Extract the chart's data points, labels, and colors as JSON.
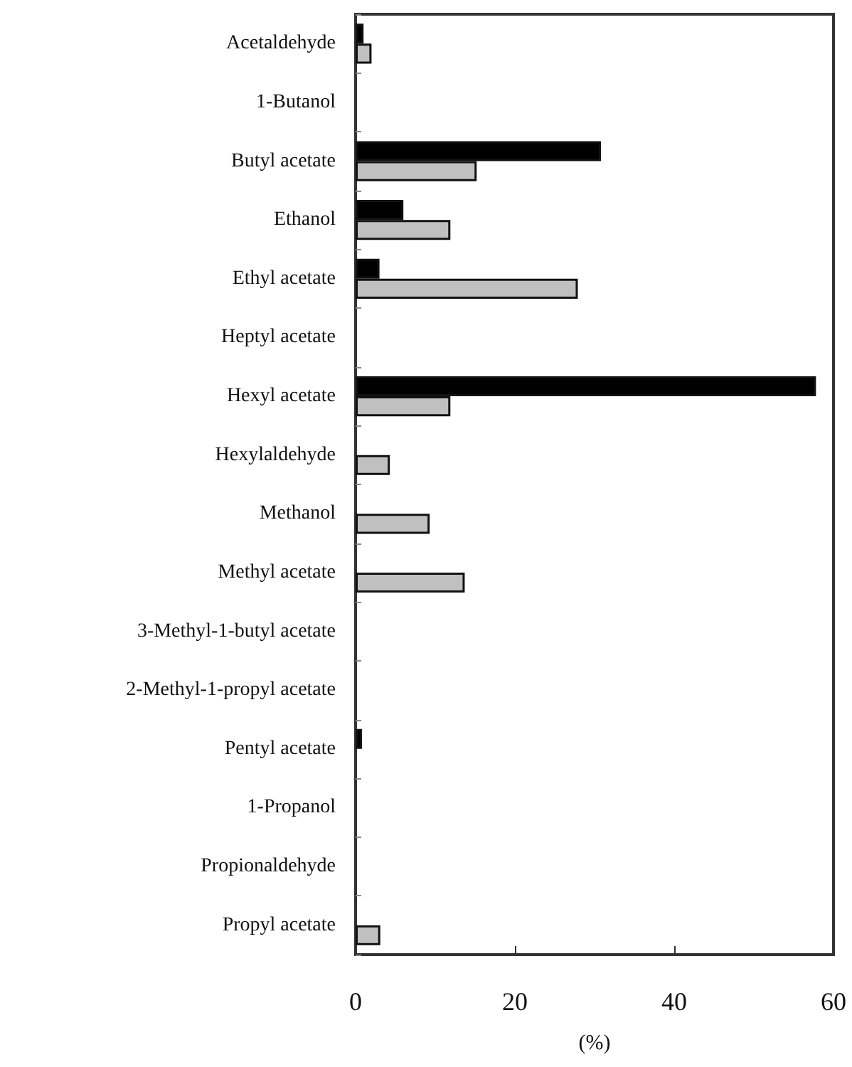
{
  "chart_data": {
    "type": "bar",
    "orientation": "horizontal",
    "xlabel": "(%)",
    "categories": [
      "Acetaldehyde",
      "1-Butanol",
      "Butyl acetate",
      "Ethanol",
      "Ethyl acetate",
      "Heptyl acetate",
      "Hexyl acetate",
      "Hexylaldehyde",
      "Methanol",
      "Methyl acetate",
      "3-Methyl-1-butyl acetate",
      "2-Methyl-1-propyl acetate",
      "Pentyl acetate",
      "1-Propanol",
      "Propionaldehyde",
      "Propyl acetate"
    ],
    "series": [
      {
        "color": "#000000",
        "values": [
          1.0,
          0,
          30.8,
          6.0,
          3.0,
          0,
          57.8,
          0,
          0,
          0,
          0,
          0,
          0.8,
          0,
          0,
          0
        ]
      },
      {
        "color": "#c0c0c0",
        "values": [
          2.0,
          0,
          15.2,
          11.9,
          27.9,
          0,
          11.9,
          4.3,
          9.3,
          13.7,
          0,
          0,
          0,
          0,
          0,
          3.1
        ]
      }
    ],
    "xlim": [
      0,
      60
    ],
    "xticks": [
      0,
      20,
      40,
      60
    ],
    "grid": false
  }
}
